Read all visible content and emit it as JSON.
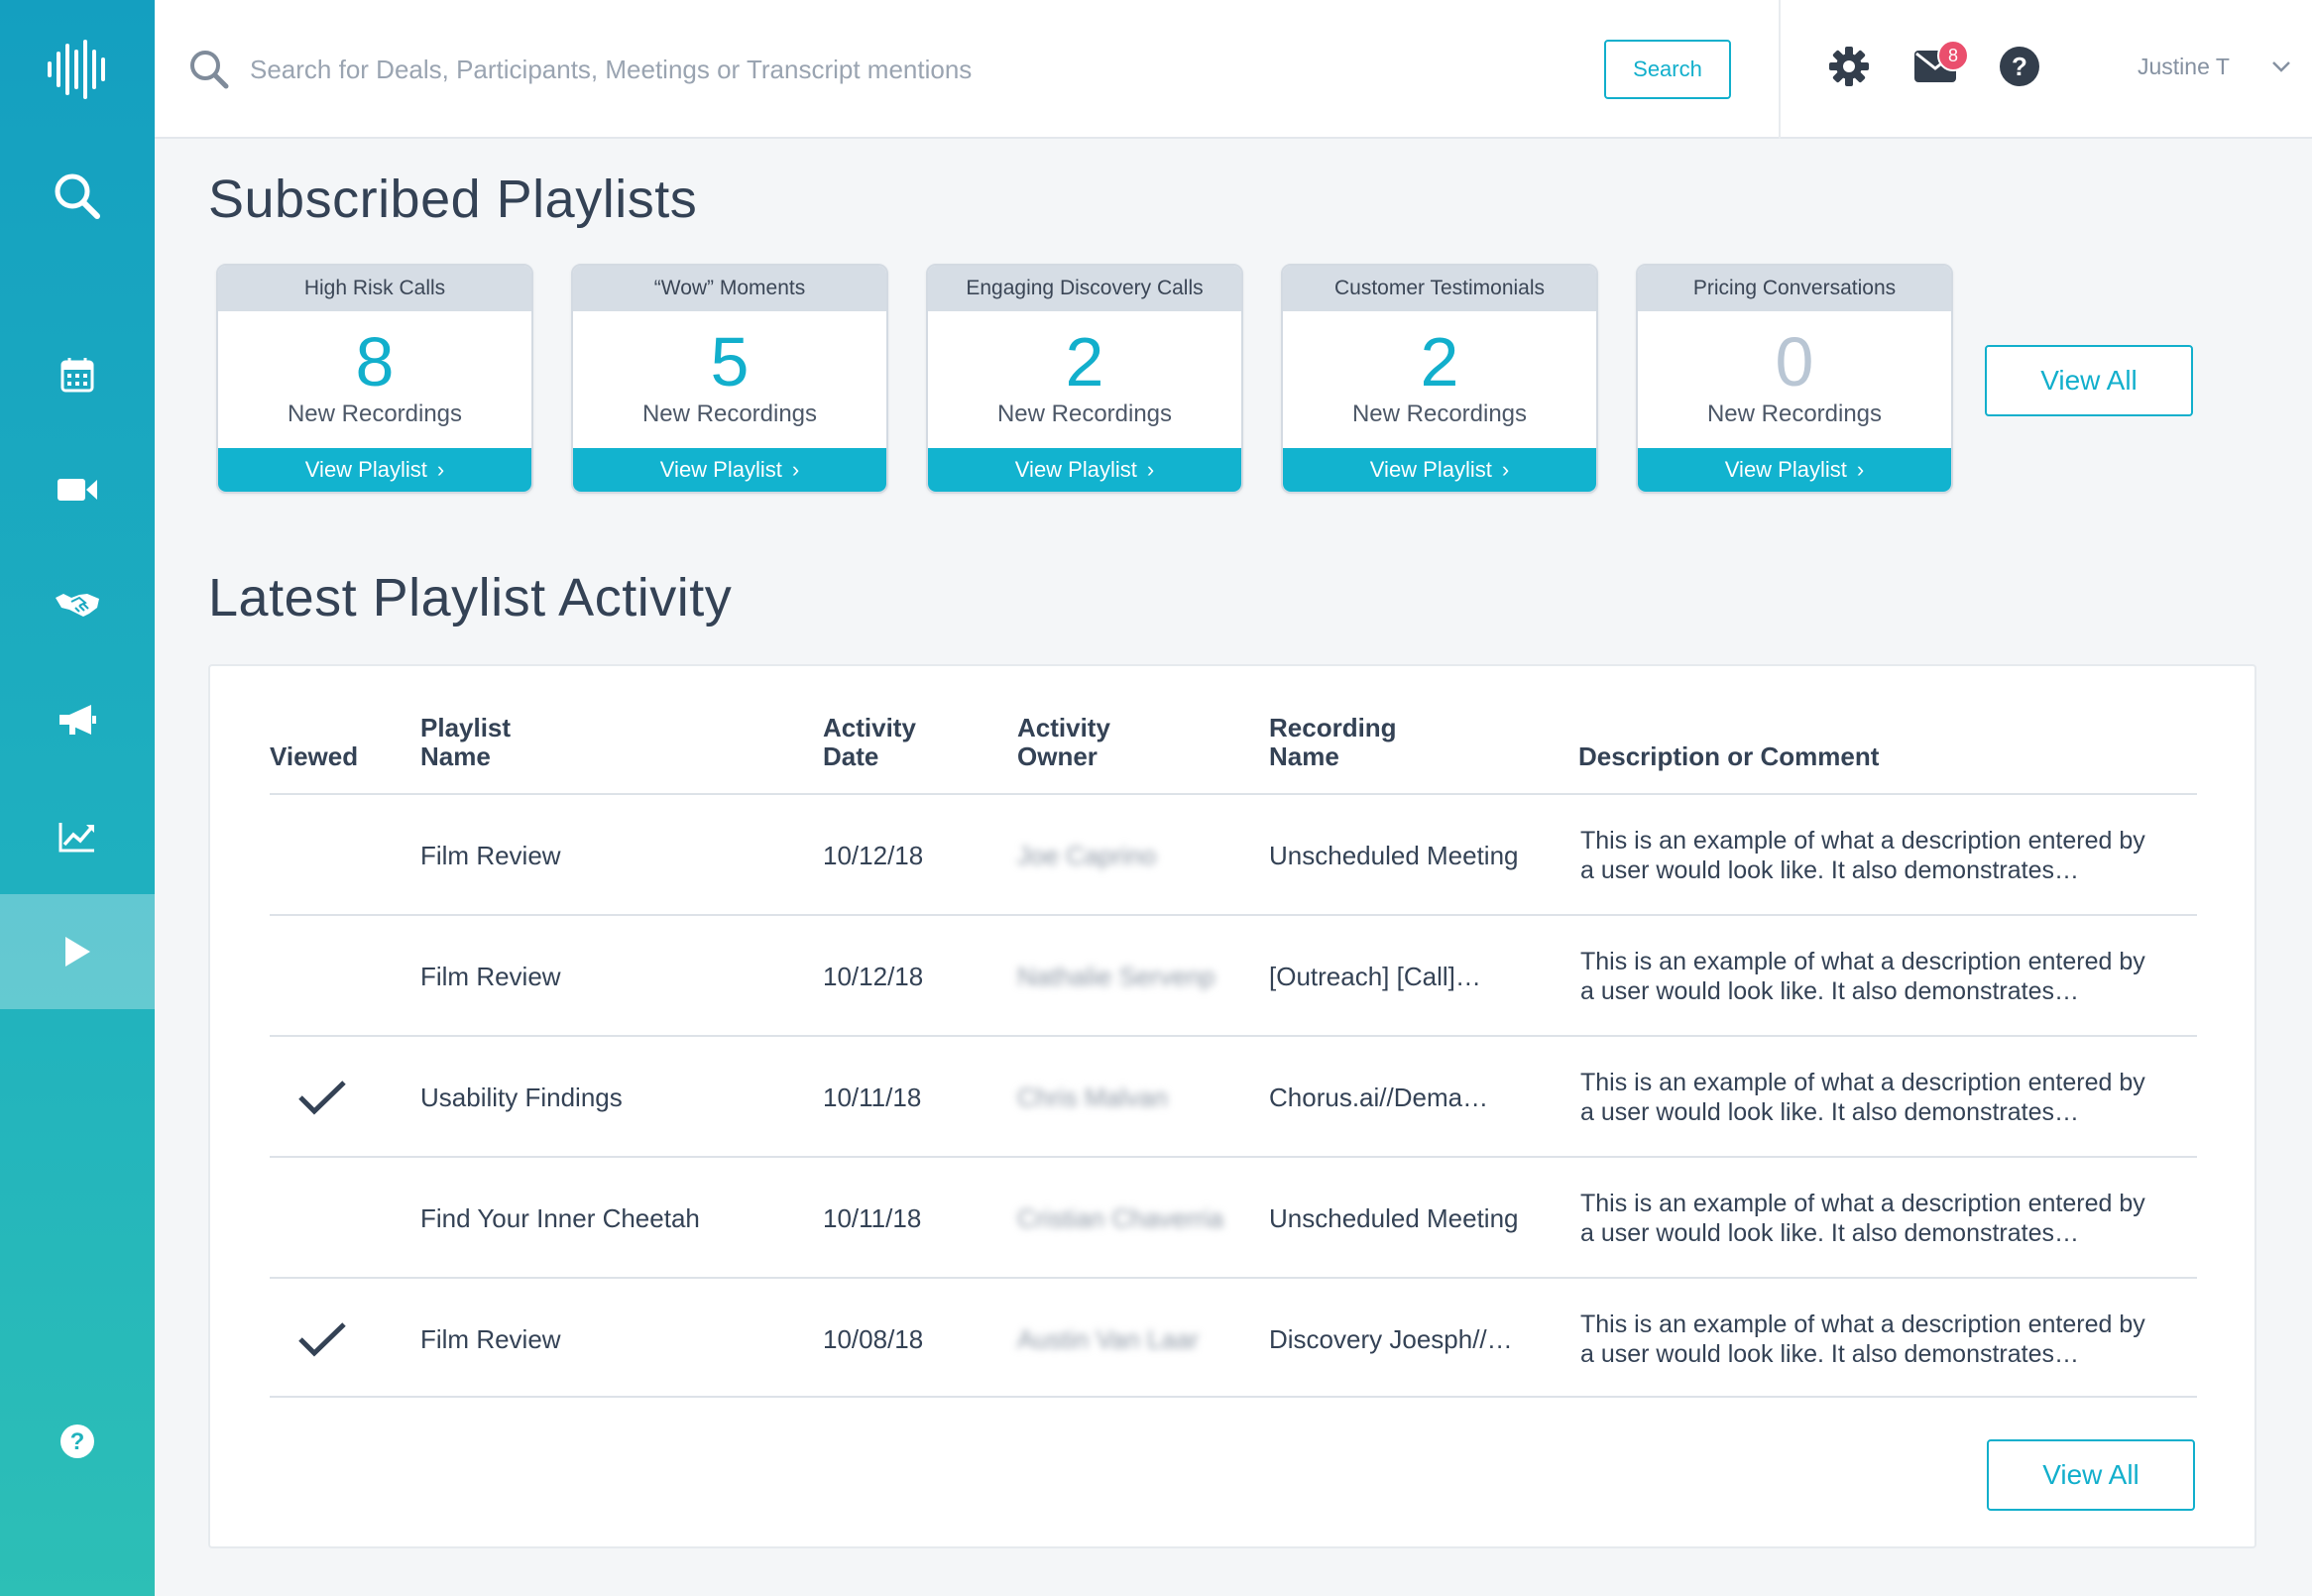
{
  "app": {
    "user_name": "Justine T",
    "notification_count": "8"
  },
  "search": {
    "placeholder": "Search for Deals, Participants, Meetings or Transcript mentions",
    "button_label": "Search"
  },
  "subscribed": {
    "title": "Subscribed Playlists",
    "view_all_label": "View All",
    "cards": [
      {
        "name": "High Risk Calls",
        "count": "8",
        "sub": "New Recordings",
        "button": "View Playlist"
      },
      {
        "name": "“Wow” Moments",
        "count": "5",
        "sub": "New Recordings",
        "button": "View Playlist"
      },
      {
        "name": "Engaging Discovery Calls",
        "count": "2",
        "sub": "New Recordings",
        "button": "View Playlist"
      },
      {
        "name": "Customer Testimonials",
        "count": "2",
        "sub": "New Recordings",
        "button": "View Playlist"
      },
      {
        "name": "Pricing Conversations",
        "count": "0",
        "sub": "New Recordings",
        "button": "View Playlist"
      }
    ]
  },
  "activity": {
    "title": "Latest Playlist Activity",
    "view_all_label": "View All",
    "headers": {
      "viewed": "Viewed",
      "playlist_1": "Playlist",
      "playlist_2": "Name",
      "date_1": "Activity",
      "date_2": "Date",
      "owner_1": "Activity",
      "owner_2": "Owner",
      "recording_1": "Recording",
      "recording_2": "Name",
      "description": "Description or Comment"
    },
    "rows": [
      {
        "viewed": false,
        "playlist": "Film Review",
        "date": "10/12/18",
        "owner": "Joe Caprino",
        "recording": "Unscheduled Meeting",
        "desc_1": "This is an example of what a description entered by",
        "desc_2": "a user would look like. It also demonstrates…"
      },
      {
        "viewed": false,
        "playlist": "Film Review",
        "date": "10/12/18",
        "owner": "Nathalie Servenp",
        "recording": "[Outreach] [Call]…",
        "desc_1": "This is an example of what a description entered by",
        "desc_2": "a user would look like. It also demonstrates…"
      },
      {
        "viewed": true,
        "playlist": "Usability Findings",
        "date": "10/11/18",
        "owner": "Chris Malvan",
        "recording": "Chorus.ai//Dema…",
        "desc_1": "This is an example of what a description entered by",
        "desc_2": "a user would look like. It also demonstrates…"
      },
      {
        "viewed": false,
        "playlist": "Find Your Inner Cheetah",
        "date": "10/11/18",
        "owner": "Cristian Chaverria",
        "recording": "Unscheduled Meeting",
        "desc_1": "This is an example of what a description entered by",
        "desc_2": "a user would look like. It also demonstrates…"
      },
      {
        "viewed": true,
        "playlist": "Film Review",
        "date": "10/08/18",
        "owner": "Austin Van Laar",
        "recording": "Discovery Joesph//…",
        "desc_1": "This is an example of what a description entered by",
        "desc_2": "a user would look like. It also demonstrates…"
      }
    ]
  },
  "colors": {
    "accent": "#12afcc",
    "sidebar_top": "#149fc0",
    "sidebar_bottom": "#2dbfb6",
    "badge": "#ea4f6d"
  },
  "icons": {
    "sidebar": [
      "logo-waveform-icon",
      "search-icon",
      "calendar-icon",
      "video-camera-icon",
      "handshake-icon",
      "megaphone-icon",
      "trend-chart-icon",
      "play-icon",
      "help-icon"
    ],
    "topbar": [
      "search-icon",
      "gear-icon",
      "mail-icon",
      "help-icon",
      "chevron-down-icon"
    ]
  }
}
